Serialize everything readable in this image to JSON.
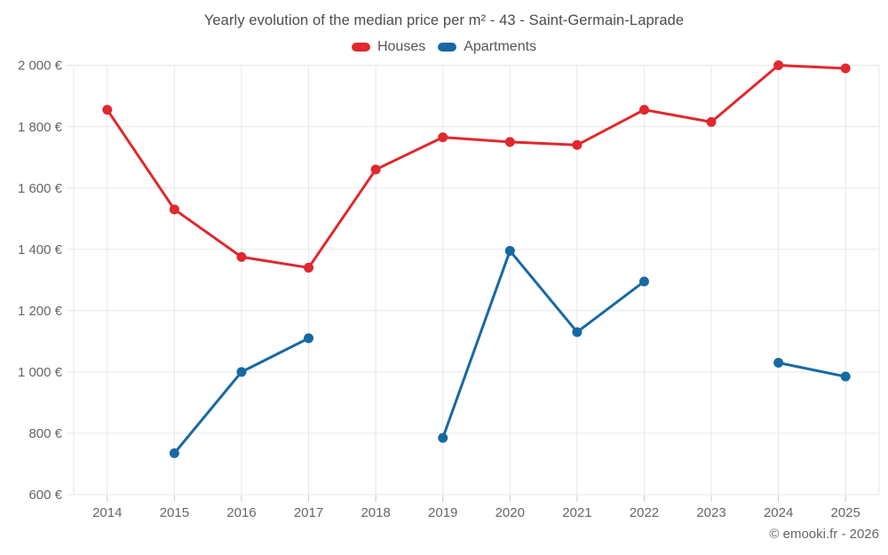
{
  "title": "Yearly evolution of the median price per m² - 43 - Saint-Germain-Laprade",
  "footer": "© emooki.fr - 2026",
  "colors": {
    "houses": "#e0282e",
    "apartments": "#1769a3",
    "grid": "#e8e8e8",
    "tick": "#cccccc",
    "axis_text": "#666666",
    "title_text": "#4c4c4c",
    "legend_text": "#555555",
    "background": "#ffffff"
  },
  "chart_data": {
    "type": "line",
    "title": "Yearly evolution of the median price per m² - 43 - Saint-Germain-Laprade",
    "categories": [
      "2014",
      "2015",
      "2016",
      "2017",
      "2018",
      "2019",
      "2020",
      "2021",
      "2022",
      "2023",
      "2024",
      "2025"
    ],
    "series": [
      {
        "name": "Houses",
        "color": "#e0282e",
        "values": [
          1855,
          1530,
          1375,
          1340,
          1660,
          1765,
          1750,
          1740,
          1855,
          1815,
          2000,
          1990
        ]
      },
      {
        "name": "Apartments",
        "color": "#1769a3",
        "values": [
          null,
          735,
          1000,
          1110,
          null,
          785,
          1395,
          1130,
          1295,
          null,
          1030,
          985
        ]
      }
    ],
    "xlabel": "",
    "ylabel": "",
    "ylim": [
      600,
      2000
    ],
    "ytick_step": 200,
    "ytick_labels": [
      "600 €",
      "800 €",
      "1 000 €",
      "1 200 €",
      "1 400 €",
      "1 600 €",
      "1 800 €",
      "2 000 €"
    ],
    "grid": true,
    "legend_position": "top",
    "marker": "circle",
    "marker_radius": 5.5,
    "line_width": 3
  }
}
